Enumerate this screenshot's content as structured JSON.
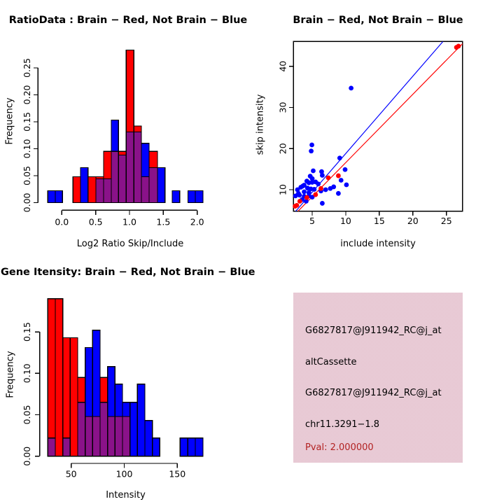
{
  "colors": {
    "red": "#ff0000",
    "blue": "#0000ff",
    "purple": "#8a1289",
    "pink_box": "#eec9d4",
    "pval_red": "#b22222",
    "axis": "#000000",
    "background": "#ffffff"
  },
  "chart_data": [
    {
      "id": "ratio_hist",
      "type": "bar",
      "title": "RatioData : Brain − Red, Not Brain − Blue",
      "xlabel": "Log2 Ratio Skip/Include",
      "ylabel": "Frequency",
      "legend": {
        "Brain": "red",
        "Not Brain": "blue",
        "overlap": "purple"
      },
      "xtick_values": [
        0.0,
        0.5,
        1.0,
        1.5,
        2.0
      ],
      "xtick_labels": [
        "0.0",
        "0.5",
        "1.0",
        "1.5",
        "2.0"
      ],
      "ytick_values": [
        0.0,
        0.05,
        0.1,
        0.15,
        0.2,
        0.25
      ],
      "ytick_labels": [
        "0.00",
        "0.05",
        "0.10",
        "0.15",
        "0.20",
        "0.25"
      ],
      "xlim": [
        -0.25,
        2.1
      ],
      "ylim": [
        0,
        0.283
      ],
      "bars": [
        {
          "x0": -0.207,
          "x1": -0.096,
          "red": 0,
          "blue": 0.022
        },
        {
          "x0": -0.096,
          "x1": 0.01,
          "red": 0,
          "blue": 0.022
        },
        {
          "x0": 0.165,
          "x1": 0.276,
          "red": 0.048,
          "blue": 0
        },
        {
          "x0": 0.276,
          "x1": 0.387,
          "red": 0,
          "blue": 0.065
        },
        {
          "x0": 0.387,
          "x1": 0.504,
          "red": 0.048,
          "blue": 0
        },
        {
          "x0": 0.504,
          "x1": 0.617,
          "red": 0.048,
          "blue": 0.044
        },
        {
          "x0": 0.617,
          "x1": 0.731,
          "red": 0.095,
          "blue": 0.044
        },
        {
          "x0": 0.731,
          "x1": 0.838,
          "red": 0.095,
          "blue": 0.153
        },
        {
          "x0": 0.838,
          "x1": 0.951,
          "red": 0.095,
          "blue": 0.088
        },
        {
          "x0": 0.951,
          "x1": 1.065,
          "red": 0.283,
          "blue": 0.131
        },
        {
          "x0": 1.065,
          "x1": 1.176,
          "red": 0.142,
          "blue": 0.131
        },
        {
          "x0": 1.176,
          "x1": 1.29,
          "red": 0.048,
          "blue": 0.11
        },
        {
          "x0": 1.29,
          "x1": 1.414,
          "red": 0.095,
          "blue": 0.065
        },
        {
          "x0": 1.414,
          "x1": 1.524,
          "red": 0,
          "blue": 0.065
        },
        {
          "x0": 1.631,
          "x1": 1.742,
          "red": 0,
          "blue": 0.022
        },
        {
          "x0": 1.862,
          "x1": 1.972,
          "red": 0,
          "blue": 0.022
        },
        {
          "x0": 1.972,
          "x1": 2.086,
          "red": 0,
          "blue": 0.022
        }
      ]
    },
    {
      "id": "intensity_scatter",
      "type": "scatter",
      "title": "Brain − Red, Not Brain − Blue",
      "xlabel": "include intensity",
      "ylabel": "skip intensity",
      "xtick_values": [
        5,
        10,
        15,
        20,
        25
      ],
      "xtick_labels": [
        "5",
        "10",
        "15",
        "20",
        "25"
      ],
      "ytick_values": [
        10,
        20,
        30,
        40
      ],
      "ytick_labels": [
        "10",
        "20",
        "30",
        "40"
      ],
      "xlim": [
        2.21,
        27.4
      ],
      "ylim": [
        4.78,
        46.0
      ],
      "blue_points": [
        [
          10.8,
          34.7
        ],
        [
          4.95,
          20.9
        ],
        [
          4.85,
          19.4
        ],
        [
          9.1,
          17.7
        ],
        [
          9.9,
          14.9
        ],
        [
          5.15,
          14.6
        ],
        [
          6.4,
          14.4
        ],
        [
          6.5,
          13.5
        ],
        [
          4.7,
          13.3
        ],
        [
          5.0,
          12.7
        ],
        [
          9.3,
          12.3
        ],
        [
          4.2,
          12.1
        ],
        [
          5.0,
          11.8
        ],
        [
          5.5,
          11.9
        ],
        [
          4.5,
          11.7
        ],
        [
          5.9,
          11.4
        ],
        [
          3.8,
          11.1
        ],
        [
          10.1,
          11.2
        ],
        [
          3.6,
          10.9
        ],
        [
          3.3,
          10.6
        ],
        [
          4.3,
          10.4
        ],
        [
          4.8,
          10.2
        ],
        [
          5.3,
          10.1
        ],
        [
          2.8,
          10.0
        ],
        [
          8.2,
          10.7
        ],
        [
          7.7,
          10.3
        ],
        [
          7.0,
          10.0
        ],
        [
          6.3,
          9.7
        ],
        [
          3.8,
          9.5
        ],
        [
          4.5,
          9.3
        ],
        [
          2.95,
          9.1
        ],
        [
          8.9,
          9.1
        ],
        [
          2.5,
          8.5
        ],
        [
          3.1,
          8.7
        ],
        [
          3.8,
          8.4
        ],
        [
          4.5,
          8.5
        ],
        [
          5.0,
          8.2
        ],
        [
          3.5,
          7.6
        ],
        [
          4.1,
          7.2
        ],
        [
          6.5,
          6.7
        ]
      ],
      "red_points": [
        [
          26.5,
          44.6
        ],
        [
          26.8,
          44.9
        ],
        [
          7.4,
          12.9
        ],
        [
          8.9,
          13.4
        ],
        [
          6.3,
          10.3
        ],
        [
          5.5,
          8.8
        ],
        [
          4.2,
          8.1
        ],
        [
          3.15,
          7.2
        ],
        [
          2.7,
          6.2
        ],
        [
          2.45,
          6.0
        ]
      ],
      "lines": [
        {
          "series": "blue",
          "slope": 1.88,
          "intercept": 0
        },
        {
          "series": "red",
          "slope": 1.66,
          "intercept": 0
        }
      ]
    },
    {
      "id": "gene_intensity_hist",
      "type": "bar",
      "title": "Gene Itensity: Brain − Red, Not Brain − Blue",
      "xlabel": "Intensity",
      "ylabel": "Frequency",
      "legend": {
        "Brain": "red",
        "Not Brain": "blue",
        "overlap": "purple"
      },
      "xtick_values": [
        50,
        100,
        150
      ],
      "xtick_labels": [
        "50",
        "100",
        "150"
      ],
      "ytick_values": [
        0.0,
        0.05,
        0.1,
        0.15
      ],
      "ytick_labels": [
        "0.00",
        "0.05",
        "0.10",
        "0.15"
      ],
      "xlim": [
        25,
        180
      ],
      "ylim": [
        0,
        0.19
      ],
      "bars": [
        {
          "x0": 28.0,
          "x1": 35.0,
          "red": 0.19,
          "blue": 0.022
        },
        {
          "x0": 35.0,
          "x1": 42.1,
          "red": 0.19,
          "blue": 0
        },
        {
          "x0": 42.1,
          "x1": 49.1,
          "red": 0.143,
          "blue": 0.022
        },
        {
          "x0": 49.1,
          "x1": 56.1,
          "red": 0.143,
          "blue": 0
        },
        {
          "x0": 56.1,
          "x1": 63.2,
          "red": 0.095,
          "blue": 0.065
        },
        {
          "x0": 63.2,
          "x1": 70.2,
          "red": 0.048,
          "blue": 0.131
        },
        {
          "x0": 70.2,
          "x1": 77.2,
          "red": 0.048,
          "blue": 0.152
        },
        {
          "x0": 77.2,
          "x1": 84.3,
          "red": 0.095,
          "blue": 0.065
        },
        {
          "x0": 84.3,
          "x1": 91.3,
          "red": 0.048,
          "blue": 0.108
        },
        {
          "x0": 91.3,
          "x1": 98.3,
          "red": 0.048,
          "blue": 0.087
        },
        {
          "x0": 98.3,
          "x1": 105.4,
          "red": 0.048,
          "blue": 0.065
        },
        {
          "x0": 105.4,
          "x1": 112.4,
          "red": 0,
          "blue": 0.065
        },
        {
          "x0": 112.4,
          "x1": 119.5,
          "red": 0,
          "blue": 0.087
        },
        {
          "x0": 119.5,
          "x1": 126.5,
          "red": 0,
          "blue": 0.043
        },
        {
          "x0": 126.5,
          "x1": 133.5,
          "red": 0,
          "blue": 0.022
        },
        {
          "x0": 152.6,
          "x1": 159.9,
          "red": 0,
          "blue": 0.022
        },
        {
          "x0": 159.9,
          "x1": 166.9,
          "red": 0,
          "blue": 0.022
        },
        {
          "x0": 166.9,
          "x1": 174.2,
          "red": 0,
          "blue": 0.022
        }
      ]
    }
  ],
  "info_panel": {
    "lines": [
      "G6827817@J911942_RC@j_at",
      "altCassette",
      "G6827817@J911942_RC@j_at",
      "chr11.3291−1.8"
    ],
    "pval_line": "Pval: 2.000000"
  }
}
